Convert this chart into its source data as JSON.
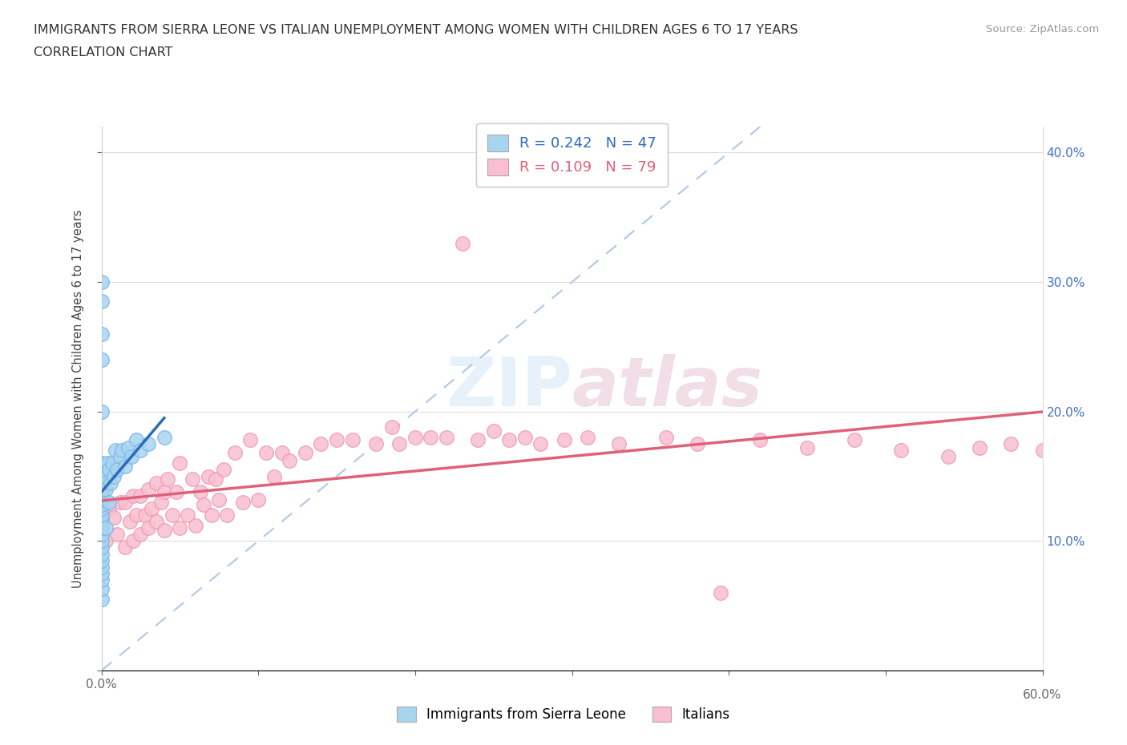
{
  "title_line1": "IMMIGRANTS FROM SIERRA LEONE VS ITALIAN UNEMPLOYMENT AMONG WOMEN WITH CHILDREN AGES 6 TO 17 YEARS",
  "title_line2": "CORRELATION CHART",
  "source": "Source: ZipAtlas.com",
  "ylabel": "Unemployment Among Women with Children Ages 6 to 17 years",
  "xlim": [
    0.0,
    0.6
  ],
  "ylim": [
    0.0,
    0.42
  ],
  "x_ticks": [
    0.0,
    0.1,
    0.2,
    0.3,
    0.4,
    0.5,
    0.6
  ],
  "x_tick_labels": [
    "0.0%",
    "",
    "",
    "",
    "",
    "",
    "60.0%"
  ],
  "y_ticks": [
    0.0,
    0.1,
    0.2,
    0.3,
    0.4
  ],
  "y_tick_labels": [
    "",
    "10.0%",
    "20.0%",
    "30.0%",
    "40.0%"
  ],
  "r_blue": 0.242,
  "n_blue": 47,
  "r_pink": 0.109,
  "n_pink": 79,
  "blue_color": "#a8d4f0",
  "blue_edge_color": "#7ab8e8",
  "pink_color": "#f9bfd0",
  "pink_edge_color": "#f09ab5",
  "blue_line_color": "#2b6cb8",
  "pink_line_color": "#e0607a",
  "dash_color": "#b0c8e8",
  "watermark_color": "#d0dff0",
  "watermark": "ZIPatlas",
  "blue_scatter_x": [
    0.0,
    0.0,
    0.0,
    0.0,
    0.0,
    0.0,
    0.0,
    0.0,
    0.0,
    0.0,
    0.0,
    0.0,
    0.0,
    0.0,
    0.0,
    0.0,
    0.0,
    0.0,
    0.0,
    0.0,
    0.0,
    0.0,
    0.0,
    0.0,
    0.0,
    0.0,
    0.0,
    0.0,
    0.003,
    0.003,
    0.004,
    0.005,
    0.005,
    0.006,
    0.007,
    0.008,
    0.009,
    0.01,
    0.012,
    0.013,
    0.015,
    0.017,
    0.019,
    0.022,
    0.025,
    0.03,
    0.04
  ],
  "blue_scatter_y": [
    0.055,
    0.063,
    0.07,
    0.075,
    0.08,
    0.085,
    0.09,
    0.095,
    0.1,
    0.105,
    0.11,
    0.113,
    0.117,
    0.12,
    0.125,
    0.128,
    0.132,
    0.135,
    0.14,
    0.145,
    0.15,
    0.155,
    0.16,
    0.2,
    0.24,
    0.26,
    0.285,
    0.3,
    0.11,
    0.14,
    0.16,
    0.13,
    0.155,
    0.145,
    0.16,
    0.15,
    0.17,
    0.155,
    0.165,
    0.17,
    0.158,
    0.172,
    0.165,
    0.178,
    0.17,
    0.175,
    0.18
  ],
  "pink_scatter_x": [
    0.0,
    0.0,
    0.0,
    0.003,
    0.005,
    0.008,
    0.01,
    0.012,
    0.015,
    0.015,
    0.018,
    0.02,
    0.02,
    0.022,
    0.025,
    0.025,
    0.028,
    0.03,
    0.03,
    0.032,
    0.035,
    0.035,
    0.038,
    0.04,
    0.04,
    0.042,
    0.045,
    0.048,
    0.05,
    0.05,
    0.055,
    0.058,
    0.06,
    0.063,
    0.065,
    0.068,
    0.07,
    0.073,
    0.075,
    0.078,
    0.08,
    0.085,
    0.09,
    0.095,
    0.1,
    0.105,
    0.11,
    0.115,
    0.12,
    0.13,
    0.14,
    0.15,
    0.16,
    0.175,
    0.185,
    0.19,
    0.2,
    0.21,
    0.22,
    0.23,
    0.24,
    0.25,
    0.26,
    0.27,
    0.28,
    0.295,
    0.31,
    0.33,
    0.36,
    0.38,
    0.395,
    0.42,
    0.45,
    0.48,
    0.51,
    0.54,
    0.56,
    0.58,
    0.6
  ],
  "pink_scatter_y": [
    0.095,
    0.11,
    0.13,
    0.1,
    0.125,
    0.118,
    0.105,
    0.13,
    0.095,
    0.13,
    0.115,
    0.1,
    0.135,
    0.12,
    0.105,
    0.135,
    0.12,
    0.11,
    0.14,
    0.125,
    0.115,
    0.145,
    0.13,
    0.108,
    0.138,
    0.148,
    0.12,
    0.138,
    0.11,
    0.16,
    0.12,
    0.148,
    0.112,
    0.138,
    0.128,
    0.15,
    0.12,
    0.148,
    0.132,
    0.155,
    0.12,
    0.168,
    0.13,
    0.178,
    0.132,
    0.168,
    0.15,
    0.168,
    0.162,
    0.168,
    0.175,
    0.178,
    0.178,
    0.175,
    0.188,
    0.175,
    0.18,
    0.18,
    0.18,
    0.33,
    0.178,
    0.185,
    0.178,
    0.18,
    0.175,
    0.178,
    0.18,
    0.175,
    0.18,
    0.175,
    0.06,
    0.178,
    0.172,
    0.178,
    0.17,
    0.165,
    0.172,
    0.175,
    0.17
  ]
}
